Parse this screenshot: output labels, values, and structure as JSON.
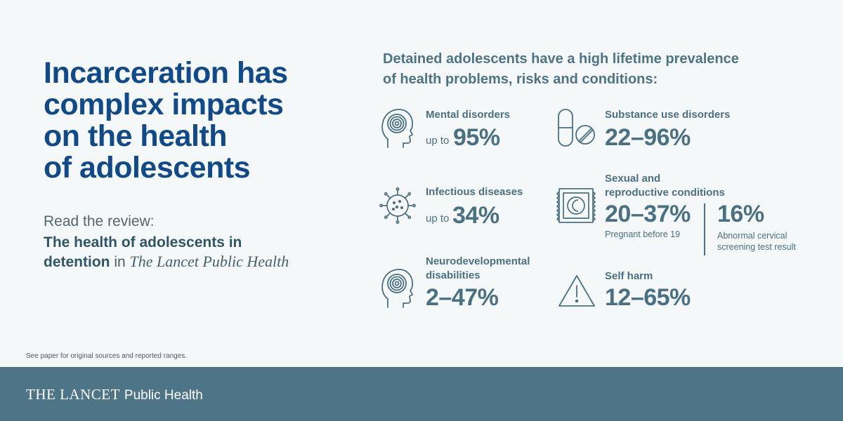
{
  "headline": [
    "Incarceration has",
    "complex impacts",
    "on the health",
    "of adolescents"
  ],
  "review": {
    "lead": "Read the review:",
    "title_bold": "The health of adolescents in detention",
    "in_word": "in",
    "journal": "The Lancet Public Health"
  },
  "intro": "Detained adolescents have a high lifetime prevalence of health problems, risks and conditions:",
  "stats": {
    "mental": {
      "icon": "head-target-icon",
      "label": "Mental disorders",
      "prefix": "up to",
      "value": "95%"
    },
    "substance": {
      "icon": "pill-tablet-icon",
      "label": "Substance use disorders",
      "value": "22–96%"
    },
    "infectious": {
      "icon": "virus-icon",
      "label": "Infectious diseases",
      "prefix": "up to",
      "value": "34%"
    },
    "sexual": {
      "icon": "condom-packet-icon",
      "label_line1": "Sexual and",
      "label_line2": "reproductive conditions",
      "value_a": "20–37%",
      "caption_a": "Pregnant before 19",
      "value_b": "16%",
      "caption_b_line1": "Abnormal cervical",
      "caption_b_line2": "screening test result"
    },
    "neuro": {
      "icon": "head-target-icon",
      "label_line1": "Neurodevelopmental",
      "label_line2": "disabilities",
      "value": "2–47%"
    },
    "selfharm": {
      "icon": "warning-icon",
      "label": "Self harm",
      "value": "12–65%"
    }
  },
  "footnote": "See paper for original sources and reported ranges.",
  "footer": {
    "brand_main": "THE LANCET",
    "brand_sub": "Public Health"
  },
  "colors": {
    "headline": "#114a8a",
    "accent": "#4a7084",
    "footer_bg": "#4e7587",
    "background": "#f5f8f8"
  }
}
